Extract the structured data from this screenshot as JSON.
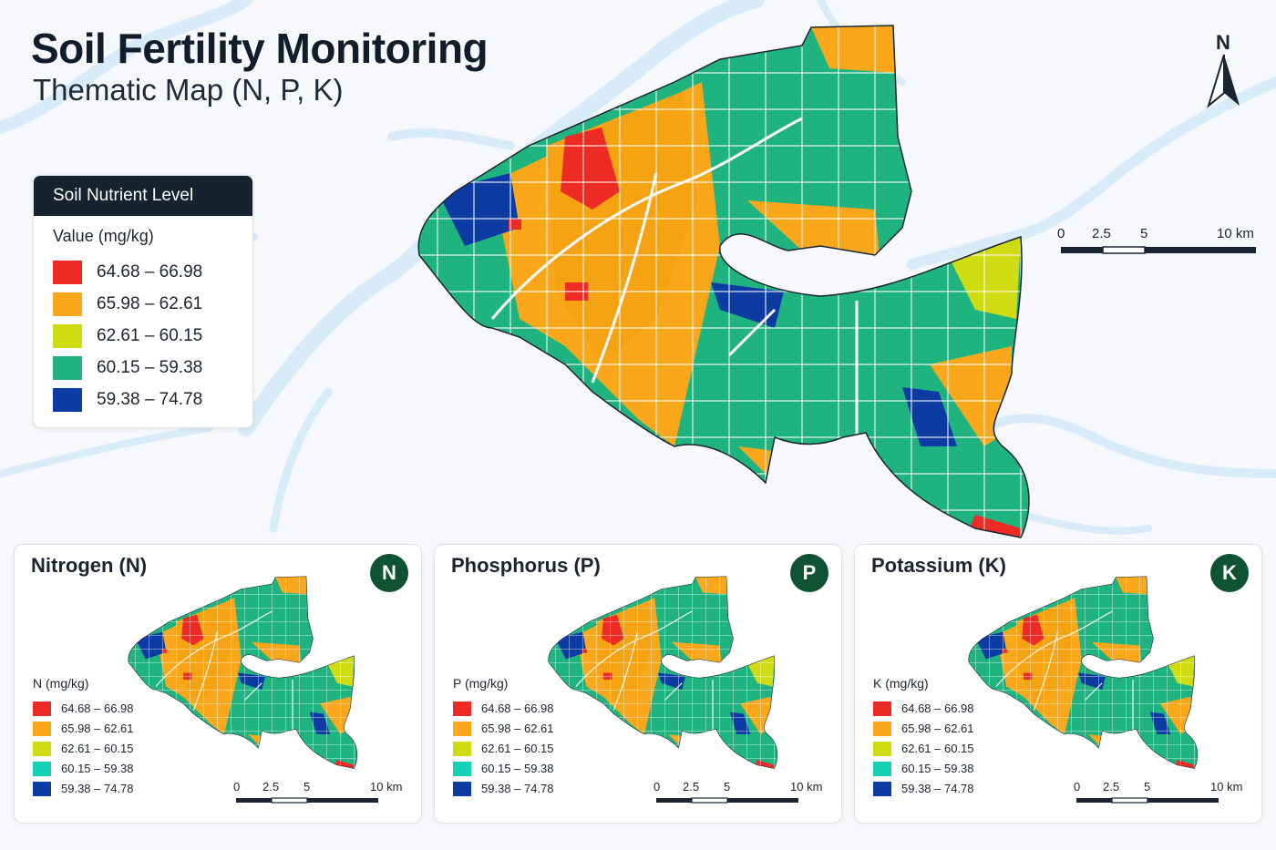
{
  "title": "Soil Fertility Monitoring",
  "subtitle": "Thematic Map (N, P, K)",
  "north_label": "N",
  "legend": {
    "header": "Soil Nutrient Level",
    "unit": "Value (mg/kg)",
    "classes": [
      {
        "label": "64.68 – 66.98",
        "color": "#ee2a24"
      },
      {
        "label": "65.98 – 62.61",
        "color": "#fba71b"
      },
      {
        "label": "62.61 – 60.15",
        "color": "#cfdc12"
      },
      {
        "label": "60.15 – 59.38",
        "color": "#1fb37f"
      },
      {
        "label": "59.38 – 74.78",
        "color": "#0b3ba3"
      }
    ]
  },
  "scale": {
    "ticks": [
      "0",
      "2.5",
      "5",
      "10 km"
    ]
  },
  "panels": [
    {
      "title": "Nitrogen (N)",
      "badge": "N",
      "unit": "N (mg/kg)"
    },
    {
      "title": "Phosphorus (P)",
      "badge": "P",
      "unit": "P (mg/kg)"
    },
    {
      "title": "Potassium (K)",
      "badge": "K",
      "unit": "K (mg/kg)"
    }
  ],
  "mini_legend": {
    "classes": [
      {
        "label": "64.68 – 66.98",
        "color": "#ee2a24"
      },
      {
        "label": "65.98 – 62.61",
        "color": "#fba71b"
      },
      {
        "label": "62.61 – 60.15",
        "color": "#cfdc12"
      },
      {
        "label": "60.15 – 59.38",
        "color": "#17d1b6"
      },
      {
        "label": "59.38 – 74.78",
        "color": "#0b3ba3"
      }
    ]
  },
  "colors": {
    "water": "#d8ebf8",
    "background": "#f6f8fb",
    "badge": "#0f5234",
    "legend_header": "#17222f"
  }
}
